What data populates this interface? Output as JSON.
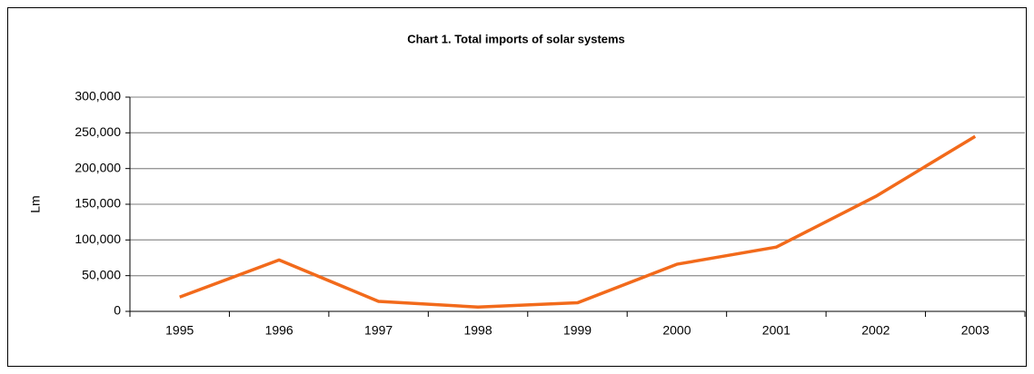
{
  "chart_data": {
    "type": "line",
    "title": "Chart 1.  Total imports of solar systems",
    "y_label": "Lm",
    "categories": [
      "1995",
      "1996",
      "1997",
      "1998",
      "1999",
      "2000",
      "2001",
      "2002",
      "2003"
    ],
    "series": [
      {
        "name": "Total imports",
        "color": "#f26a1b",
        "values": [
          20000,
          72000,
          14000,
          6000,
          12000,
          66000,
          90000,
          161000,
          245000
        ]
      }
    ],
    "ylim": [
      0,
      300000
    ],
    "yticks": [
      0,
      {
        "value": 50000,
        "label": "50,000"
      },
      {
        "value": 100000,
        "label": "100,000"
      },
      {
        "value": 150000,
        "label": "150,000"
      },
      {
        "value": 200000,
        "label": "200,000"
      },
      {
        "value": 250000,
        "label": "250,000"
      },
      {
        "value": 300000,
        "label": "300,000"
      }
    ],
    "grid": true
  }
}
